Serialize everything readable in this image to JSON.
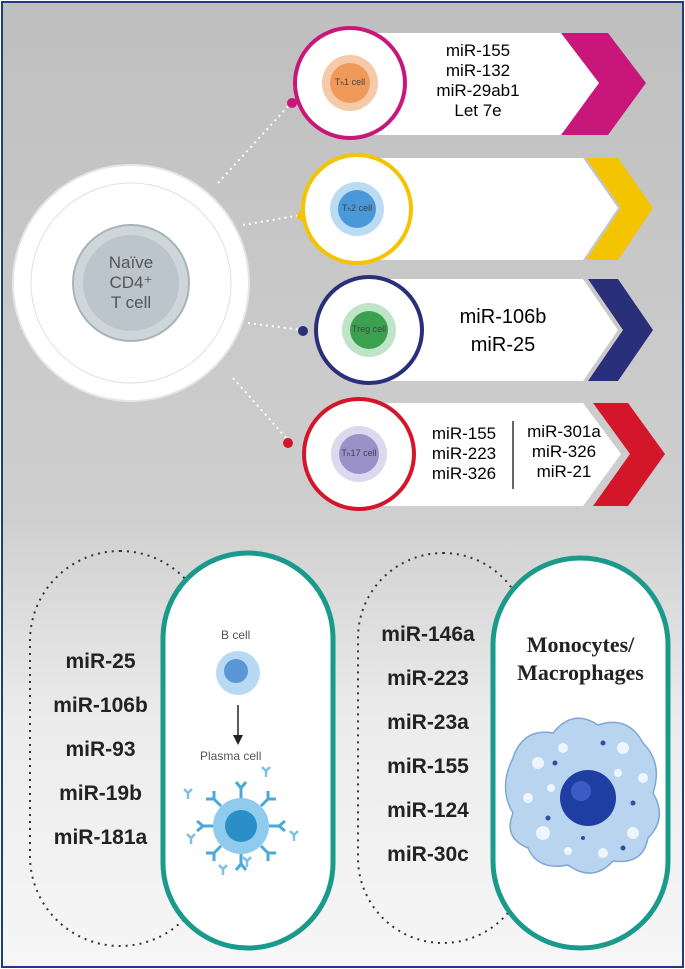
{
  "naive": {
    "line1": "Naïve",
    "line2": "CD4⁺",
    "line3": "T cell"
  },
  "cells": {
    "th1": {
      "label": "Tₕ1 cell",
      "color": "#c8167a",
      "mirs": [
        "miR-155",
        "miR-132",
        "miR-29ab1",
        "Let 7e"
      ]
    },
    "th2": {
      "label": "Tₕ2 cell",
      "color": "#f5c400",
      "mirs": []
    },
    "treg": {
      "label": "Treg cell",
      "color": "#2a2f7a",
      "mirs": [
        "miR-106b",
        "miR-25"
      ]
    },
    "th17": {
      "label": "Tₕ17 cell",
      "color": "#d4162a",
      "mirs_left": [
        "miR-155",
        "miR-223",
        "miR-326"
      ],
      "mirs_right": [
        "miR-301a",
        "miR-326",
        "miR-21"
      ]
    }
  },
  "bcell": {
    "label_top": "B cell",
    "label_bottom": "Plasma cell",
    "mirs": [
      "miR-25",
      "miR-106b",
      "miR-93",
      "miR-19b",
      "miR-181a"
    ]
  },
  "mono": {
    "title_line1": "Monocytes/",
    "title_line2": "Macrophages",
    "mirs": [
      "miR-146a",
      "miR-223",
      "miR-23a",
      "miR-155",
      "miR-124",
      "miR-30c"
    ]
  },
  "colors": {
    "teal": "#1a9a8a",
    "frame": "#1e3a8a"
  }
}
